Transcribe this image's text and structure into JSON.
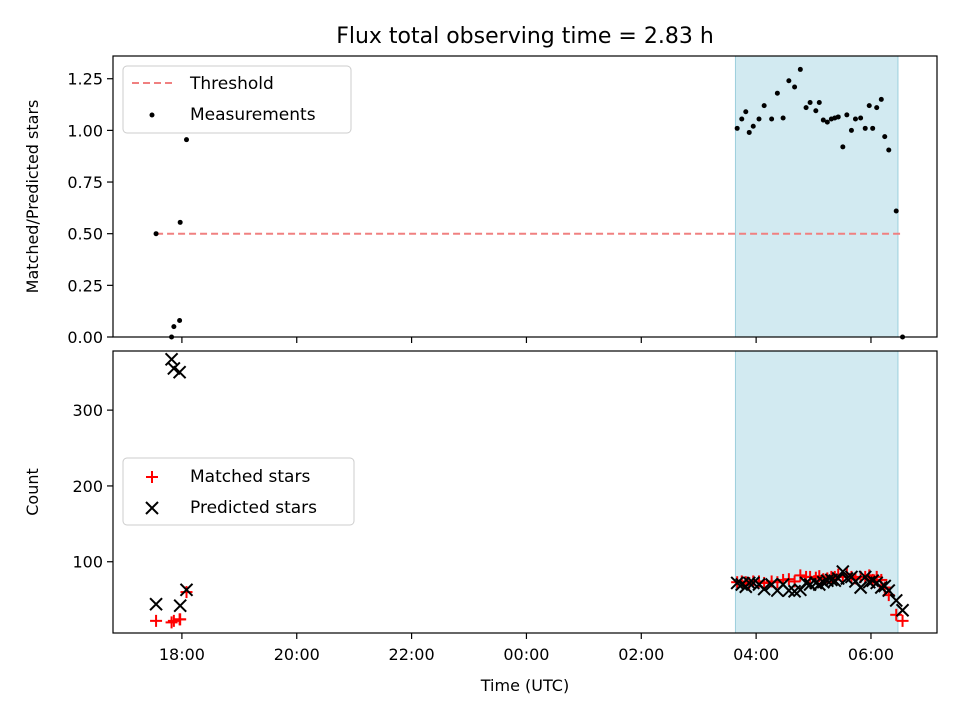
{
  "chart_data": [
    {
      "type": "scatter",
      "title": "Flux total observing time = 2.83 h",
      "xlabel": "",
      "ylabel": "Matched/Predicted stars",
      "x_unit": "hours since 2024-01-01 00:00 UTC",
      "xlim": [
        16.8,
        31.15
      ],
      "ylim": [
        0.0,
        1.36
      ],
      "yticks": [
        0.0,
        0.25,
        0.5,
        0.75,
        1.0,
        1.25
      ],
      "ytick_labels": [
        "0.00",
        "0.25",
        "0.50",
        "0.75",
        "1.00",
        "1.25"
      ],
      "xticks_show_labels": false,
      "shaded_region": {
        "x": [
          27.64,
          30.47
        ],
        "color": "#add8e6"
      },
      "legend": {
        "position": "upper-left",
        "entries": [
          "Threshold",
          "Measurements"
        ]
      },
      "series": [
        {
          "name": "Threshold",
          "kind": "dashed-line",
          "color": "#f08080",
          "x": [
            17.55,
            30.55
          ],
          "y": [
            0.5,
            0.5
          ]
        },
        {
          "name": "Measurements",
          "kind": "points",
          "color": "#000000",
          "x": [
            17.55,
            17.82,
            17.86,
            17.96,
            17.97,
            18.08,
            27.67,
            27.75,
            27.82,
            27.88,
            27.95,
            28.05,
            28.14,
            28.27,
            28.37,
            28.47,
            28.57,
            28.67,
            28.77,
            28.87,
            28.94,
            29.04,
            29.1,
            29.17,
            29.24,
            29.31,
            29.37,
            29.43,
            29.51,
            29.58,
            29.66,
            29.73,
            29.82,
            29.9,
            29.97,
            30.03,
            30.1,
            30.18,
            30.24,
            30.31,
            30.44,
            30.55
          ],
          "y": [
            0.5,
            0.0,
            0.05,
            0.08,
            0.555,
            0.955,
            1.01,
            1.055,
            1.09,
            0.99,
            1.02,
            1.055,
            1.12,
            1.055,
            1.18,
            1.06,
            1.24,
            1.21,
            1.295,
            1.11,
            1.135,
            1.095,
            1.135,
            1.05,
            1.04,
            1.055,
            1.06,
            1.065,
            0.92,
            1.075,
            1.0,
            1.055,
            1.06,
            1.01,
            1.12,
            1.01,
            1.11,
            1.15,
            0.97,
            0.905,
            0.61,
            0.0
          ]
        }
      ]
    },
    {
      "type": "scatter",
      "title": "",
      "xlabel": "Time (UTC)",
      "ylabel": "Count",
      "x_unit": "hours since 2024-01-01 00:00 UTC",
      "xlim": [
        16.8,
        31.15
      ],
      "ylim": [
        6,
        378
      ],
      "yticks": [
        100,
        200,
        300
      ],
      "ytick_labels": [
        "100",
        "200",
        "300"
      ],
      "xticks": [
        18,
        20,
        22,
        24,
        26,
        28,
        30
      ],
      "xtick_labels": [
        "18:00",
        "20:00",
        "22:00",
        "00:00",
        "02:00",
        "04:00",
        "06:00"
      ],
      "shaded_region": {
        "x": [
          27.64,
          30.47
        ],
        "color": "#add8e6"
      },
      "legend": {
        "position": "center-left",
        "entries": [
          "Matched stars",
          "Predicted stars"
        ]
      },
      "series": [
        {
          "name": "Matched stars",
          "kind": "plus",
          "color": "#ff0000",
          "x": [
            17.55,
            17.82,
            17.86,
            17.96,
            17.97,
            18.08,
            27.67,
            27.75,
            27.82,
            27.88,
            27.95,
            28.05,
            28.14,
            28.27,
            28.37,
            28.47,
            28.57,
            28.67,
            28.77,
            28.87,
            28.94,
            29.04,
            29.1,
            29.17,
            29.24,
            29.31,
            29.37,
            29.43,
            29.51,
            29.58,
            29.66,
            29.73,
            29.82,
            29.9,
            29.97,
            30.03,
            30.1,
            30.18,
            30.24,
            30.31,
            30.44,
            30.55
          ],
          "y": [
            22,
            20,
            22,
            24,
            24,
            60,
            73,
            74,
            73,
            72,
            74,
            74,
            72,
            74,
            73,
            76,
            77,
            74,
            82,
            80,
            80,
            79,
            81,
            77,
            78,
            80,
            80,
            83,
            80,
            84,
            80,
            78,
            80,
            80,
            82,
            76,
            80,
            76,
            66,
            56,
            30,
            22
          ]
        },
        {
          "name": "Predicted stars",
          "kind": "cross",
          "color": "#000000",
          "x": [
            17.55,
            17.82,
            17.86,
            17.96,
            17.97,
            18.08,
            27.67,
            27.75,
            27.82,
            27.88,
            27.95,
            28.05,
            28.14,
            28.27,
            28.37,
            28.47,
            28.57,
            28.67,
            28.77,
            28.87,
            28.94,
            29.04,
            29.1,
            29.17,
            29.24,
            29.31,
            29.37,
            29.43,
            29.51,
            29.58,
            29.66,
            29.73,
            29.82,
            29.9,
            29.97,
            30.03,
            30.1,
            30.18,
            30.24,
            30.31,
            30.44,
            30.55
          ],
          "y": [
            44,
            367,
            355,
            350,
            42,
            63,
            72,
            70,
            67,
            72,
            72,
            70,
            64,
            70,
            62,
            70,
            62,
            61,
            63,
            72,
            70,
            72,
            70,
            73,
            75,
            76,
            75,
            78,
            87,
            78,
            80,
            74,
            66,
            80,
            73,
            75,
            72,
            66,
            68,
            62,
            49,
            36
          ]
        }
      ]
    }
  ]
}
